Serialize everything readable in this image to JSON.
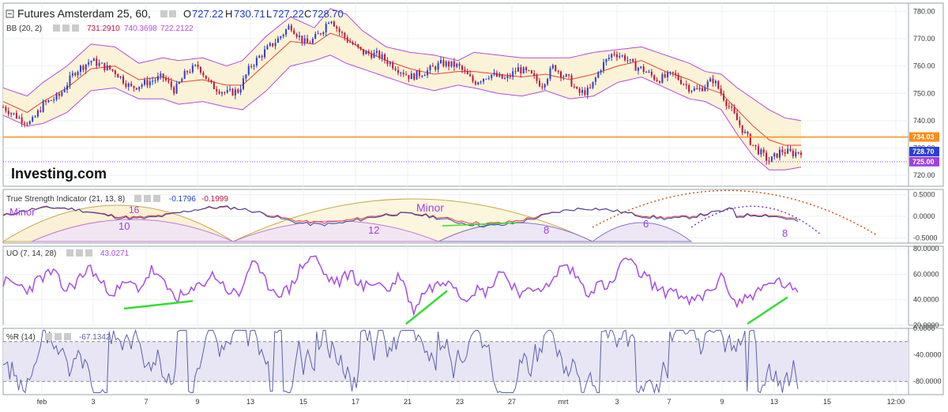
{
  "header": {
    "symbol": "Futures Amsterdam 25, 60,",
    "open_label": "O",
    "open": "727.22",
    "high_label": "H",
    "high": "730.71",
    "low_label": "L",
    "low": "727.22",
    "close_label": "C",
    "close": "728.70"
  },
  "bb": {
    "label": "BB (20, 2)",
    "v1": "731.2910",
    "v2": "740.3698",
    "v3": "722.2122"
  },
  "tsi": {
    "label": "True Strength Indicator (21, 13, 8)",
    "v1": "-0.1796",
    "v2": "-0.1999"
  },
  "uo": {
    "label": "UO (7, 14, 28)",
    "v1": "43.0271"
  },
  "wr": {
    "label": "%R (14)",
    "v1": "-67.1342"
  },
  "logo": "Investing.com",
  "colors": {
    "bull": "#2a3fd6",
    "bear": "#c0143c",
    "bb_band": "#b44ae0",
    "bb_mid": "#e8412c",
    "bb_fill": "#fbf3d8",
    "orange_line": "#ff8c1a",
    "purple_dotted": "#a040e0",
    "tsi_line": "#3344aa",
    "tsi_signal": "#e53935",
    "uo_line": "#a64de8",
    "wr_line": "#5b5fb0",
    "wr_fill": "#e8e6f4",
    "divergence": "#33dd33",
    "cycle_fill": "#f3eef0",
    "cycle_fill_yellow": "#fcf6df"
  },
  "chart_data": [
    {
      "type": "candlestick",
      "title": "Futures Amsterdam 25, 60,",
      "ylim": [
        716,
        783
      ],
      "y_ticks": [
        720,
        730,
        740,
        750,
        760,
        770,
        780
      ],
      "y_tick_labels": [
        "720.00",
        "730.00",
        "740.00",
        "750.00",
        "760.00",
        "770.00",
        "780.00"
      ],
      "price_tags": [
        {
          "value": 734.03,
          "label": "734.03",
          "color": "#ff8c1a"
        },
        {
          "value": 728.7,
          "label": "728.70",
          "color": "#2a3fd6"
        },
        {
          "value": 725.0,
          "label": "725.00",
          "color": "#a040e0"
        }
      ],
      "close_path": [
        [
          0.0,
          745
        ],
        [
          0.02,
          741
        ],
        [
          0.035,
          739
        ],
        [
          0.05,
          746
        ],
        [
          0.07,
          749
        ],
        [
          0.09,
          758
        ],
        [
          0.11,
          762
        ],
        [
          0.125,
          760
        ],
        [
          0.14,
          758
        ],
        [
          0.16,
          752
        ],
        [
          0.18,
          754
        ],
        [
          0.2,
          756
        ],
        [
          0.215,
          751
        ],
        [
          0.23,
          758
        ],
        [
          0.245,
          760
        ],
        [
          0.26,
          753
        ],
        [
          0.28,
          750
        ],
        [
          0.295,
          751
        ],
        [
          0.31,
          760
        ],
        [
          0.33,
          766
        ],
        [
          0.345,
          770
        ],
        [
          0.36,
          775
        ],
        [
          0.37,
          771
        ],
        [
          0.38,
          768
        ],
        [
          0.39,
          770
        ],
        [
          0.4,
          773
        ],
        [
          0.41,
          778
        ],
        [
          0.42,
          773
        ],
        [
          0.43,
          770
        ],
        [
          0.45,
          765
        ],
        [
          0.47,
          764
        ],
        [
          0.49,
          760
        ],
        [
          0.51,
          756
        ],
        [
          0.53,
          758
        ],
        [
          0.55,
          761
        ],
        [
          0.57,
          760
        ],
        [
          0.59,
          754
        ],
        [
          0.61,
          757
        ],
        [
          0.63,
          755
        ],
        [
          0.645,
          759
        ],
        [
          0.66,
          757
        ],
        [
          0.675,
          753
        ],
        [
          0.69,
          760
        ],
        [
          0.7,
          757
        ],
        [
          0.71,
          755
        ],
        [
          0.72,
          750
        ],
        [
          0.735,
          751
        ],
        [
          0.75,
          760
        ],
        [
          0.765,
          765
        ],
        [
          0.78,
          763
        ],
        [
          0.79,
          760
        ],
        [
          0.8,
          759
        ],
        [
          0.82,
          755
        ],
        [
          0.84,
          757
        ],
        [
          0.86,
          752
        ],
        [
          0.87,
          751
        ],
        [
          0.89,
          755
        ],
        [
          0.9,
          750
        ],
        [
          0.91,
          745
        ],
        [
          0.92,
          740
        ],
        [
          0.93,
          735
        ],
        [
          0.94,
          731
        ],
        [
          0.95,
          728
        ],
        [
          0.96,
          725
        ],
        [
          0.975,
          729
        ],
        [
          0.99,
          728
        ],
        [
          1.0,
          729
        ]
      ],
      "upper_band_path": [
        [
          0.0,
          752
        ],
        [
          0.03,
          749
        ],
        [
          0.05,
          754
        ],
        [
          0.08,
          760
        ],
        [
          0.11,
          768
        ],
        [
          0.14,
          767
        ],
        [
          0.17,
          761
        ],
        [
          0.2,
          763
        ],
        [
          0.22,
          762
        ],
        [
          0.25,
          763
        ],
        [
          0.28,
          760
        ],
        [
          0.3,
          762
        ],
        [
          0.33,
          771
        ],
        [
          0.36,
          778
        ],
        [
          0.39,
          774
        ],
        [
          0.41,
          781
        ],
        [
          0.43,
          779
        ],
        [
          0.45,
          773
        ],
        [
          0.48,
          767
        ],
        [
          0.51,
          765
        ],
        [
          0.54,
          764
        ],
        [
          0.57,
          762
        ],
        [
          0.59,
          765
        ],
        [
          0.62,
          764
        ],
        [
          0.65,
          763
        ],
        [
          0.68,
          763
        ],
        [
          0.71,
          763
        ],
        [
          0.74,
          765
        ],
        [
          0.77,
          766
        ],
        [
          0.8,
          767
        ],
        [
          0.83,
          764
        ],
        [
          0.86,
          761
        ],
        [
          0.88,
          758
        ],
        [
          0.9,
          757
        ],
        [
          0.92,
          752
        ],
        [
          0.94,
          748
        ],
        [
          0.96,
          744
        ],
        [
          0.98,
          741
        ],
        [
          1.0,
          740
        ]
      ],
      "lower_band_path": [
        [
          0.0,
          742
        ],
        [
          0.03,
          738
        ],
        [
          0.05,
          739
        ],
        [
          0.08,
          743
        ],
        [
          0.11,
          751
        ],
        [
          0.14,
          752
        ],
        [
          0.17,
          748
        ],
        [
          0.2,
          748
        ],
        [
          0.22,
          746
        ],
        [
          0.25,
          747
        ],
        [
          0.28,
          745
        ],
        [
          0.3,
          744
        ],
        [
          0.33,
          751
        ],
        [
          0.36,
          760
        ],
        [
          0.39,
          762
        ],
        [
          0.41,
          764
        ],
        [
          0.43,
          761
        ],
        [
          0.45,
          759
        ],
        [
          0.48,
          756
        ],
        [
          0.51,
          753
        ],
        [
          0.54,
          751
        ],
        [
          0.57,
          753
        ],
        [
          0.59,
          752
        ],
        [
          0.62,
          750
        ],
        [
          0.65,
          749
        ],
        [
          0.68,
          751
        ],
        [
          0.71,
          748
        ],
        [
          0.74,
          749
        ],
        [
          0.77,
          754
        ],
        [
          0.8,
          756
        ],
        [
          0.83,
          752
        ],
        [
          0.86,
          748
        ],
        [
          0.88,
          747
        ],
        [
          0.9,
          744
        ],
        [
          0.92,
          735
        ],
        [
          0.94,
          727
        ],
        [
          0.96,
          722
        ],
        [
          0.98,
          722
        ],
        [
          1.0,
          723
        ]
      ],
      "mid_band_path": [
        [
          0.0,
          747
        ],
        [
          0.03,
          743
        ],
        [
          0.05,
          747
        ],
        [
          0.08,
          752
        ],
        [
          0.11,
          759
        ],
        [
          0.14,
          760
        ],
        [
          0.17,
          755
        ],
        [
          0.2,
          756
        ],
        [
          0.22,
          754
        ],
        [
          0.25,
          755
        ],
        [
          0.28,
          753
        ],
        [
          0.3,
          753
        ],
        [
          0.33,
          761
        ],
        [
          0.36,
          769
        ],
        [
          0.39,
          768
        ],
        [
          0.41,
          772
        ],
        [
          0.43,
          770
        ],
        [
          0.45,
          766
        ],
        [
          0.48,
          762
        ],
        [
          0.51,
          759
        ],
        [
          0.54,
          757
        ],
        [
          0.57,
          758
        ],
        [
          0.59,
          758
        ],
        [
          0.62,
          757
        ],
        [
          0.65,
          756
        ],
        [
          0.68,
          757
        ],
        [
          0.71,
          755
        ],
        [
          0.74,
          757
        ],
        [
          0.77,
          760
        ],
        [
          0.8,
          762
        ],
        [
          0.83,
          758
        ],
        [
          0.86,
          755
        ],
        [
          0.88,
          752
        ],
        [
          0.9,
          750
        ],
        [
          0.92,
          744
        ],
        [
          0.94,
          738
        ],
        [
          0.96,
          733
        ],
        [
          0.98,
          731
        ],
        [
          1.0,
          731
        ]
      ]
    },
    {
      "type": "line",
      "title": "True Strength Indicator (21, 13, 8)",
      "ylim": [
        -0.62,
        0.62
      ],
      "y_ticks": [
        0.5,
        0,
        -0.5
      ],
      "y_tick_labels": [
        "0.5000",
        "0.0000",
        "-0.5000"
      ],
      "annotations": [
        "Minor",
        "16",
        "10",
        "12",
        "Minor",
        "8",
        "6",
        "8"
      ]
    },
    {
      "type": "line",
      "title": "UO (7, 14, 28)",
      "ylim": [
        20,
        82
      ],
      "y_ticks": [
        80,
        60,
        40,
        20
      ],
      "y_tick_labels": [
        "80.0000",
        "60.0000",
        "40.0000",
        "20.0000"
      ],
      "series": [
        {
          "name": "UO",
          "values": [
            54,
            52,
            48,
            57,
            62,
            47,
            55,
            66,
            51,
            46,
            53,
            49,
            64,
            51,
            42,
            44,
            53,
            60,
            48,
            43,
            71,
            55,
            46,
            47,
            66,
            75,
            58,
            53,
            62,
            49,
            55,
            47,
            60,
            31,
            48,
            52,
            58,
            41,
            48,
            46,
            64,
            52,
            43,
            51,
            49,
            68,
            61,
            46,
            52,
            50,
            74,
            63,
            56,
            45,
            49,
            38,
            40,
            48,
            58,
            36,
            43,
            47,
            55,
            52,
            43
          ]
        }
      ]
    },
    {
      "type": "line",
      "title": "%R (14)",
      "ylim": [
        -100,
        0
      ],
      "y_ticks": [
        0,
        -40,
        -80
      ],
      "y_tick_labels": [
        "0.0000",
        "-40.0000",
        "-80.0000"
      ]
    }
  ],
  "x_axis": {
    "labels": [
      "feb",
      "3",
      "7",
      "9",
      "13",
      "15",
      "17",
      "21",
      "23",
      "27",
      "mrt",
      "3",
      "7",
      "9",
      "13",
      "15",
      "12:00"
    ]
  }
}
